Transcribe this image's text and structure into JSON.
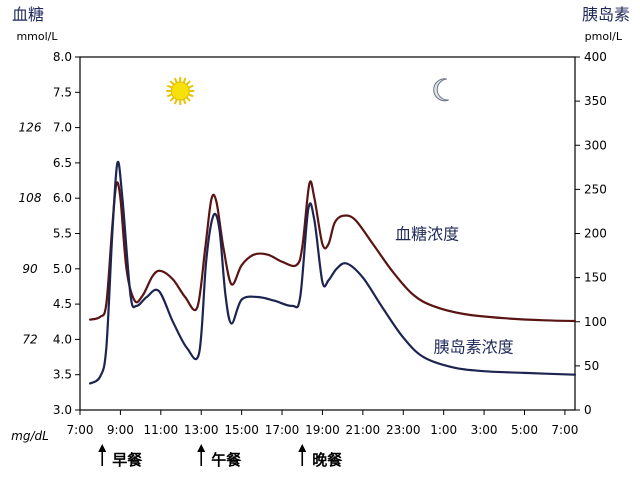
{
  "chart_data": {
    "type": "line",
    "title_left": "血糖",
    "title_right": "胰岛素",
    "left_unit": "mmol/L",
    "right_unit": "pmol/L",
    "mg_unit": "mg/dL",
    "x_start_hour": 7,
    "xlim_hours": [
      7,
      31.5
    ],
    "x_ticks": [
      "7:00",
      "9:00",
      "11:00",
      "13:00",
      "15:00",
      "17:00",
      "19:00",
      "21:00",
      "23:00",
      "1:00",
      "3:00",
      "5:00",
      "7:00"
    ],
    "x_tick_hours": [
      7,
      9,
      11,
      13,
      15,
      17,
      19,
      21,
      23,
      25,
      27,
      29,
      31
    ],
    "ylim_left": [
      3.0,
      8.0
    ],
    "y_ticks_left": [
      "3.0",
      "3.5",
      "4.0",
      "4.5",
      "5.0",
      "5.5",
      "6.0",
      "6.5",
      "7.0",
      "7.5",
      "8.0"
    ],
    "y_tick_values_left": [
      3.0,
      3.5,
      4.0,
      4.5,
      5.0,
      5.5,
      6.0,
      6.5,
      7.0,
      7.5,
      8.0
    ],
    "ylim_right": [
      0,
      400
    ],
    "y_ticks_right": [
      "0",
      "50",
      "100",
      "150",
      "200",
      "250",
      "300",
      "350",
      "400"
    ],
    "y_tick_values_right": [
      0,
      50,
      100,
      150,
      200,
      250,
      300,
      350,
      400
    ],
    "mg_ticks": [
      {
        "label": "72",
        "mmol": 4.0
      },
      {
        "label": "90",
        "mmol": 5.0
      },
      {
        "label": "108",
        "mmol": 6.0
      },
      {
        "label": "126",
        "mmol": 7.0
      }
    ],
    "series": [
      {
        "name": "血糖浓度",
        "axis": "left",
        "color": "#5a1414",
        "points": [
          [
            7.5,
            4.28
          ],
          [
            8.0,
            4.32
          ],
          [
            8.3,
            4.5
          ],
          [
            8.6,
            5.6
          ],
          [
            8.8,
            6.2
          ],
          [
            9.0,
            6.0
          ],
          [
            9.3,
            5.0
          ],
          [
            9.7,
            4.55
          ],
          [
            10.1,
            4.62
          ],
          [
            10.6,
            4.9
          ],
          [
            11.0,
            4.97
          ],
          [
            11.6,
            4.85
          ],
          [
            12.2,
            4.6
          ],
          [
            12.8,
            4.45
          ],
          [
            13.2,
            5.3
          ],
          [
            13.5,
            5.98
          ],
          [
            13.75,
            5.95
          ],
          [
            14.1,
            5.3
          ],
          [
            14.5,
            4.78
          ],
          [
            15.0,
            5.05
          ],
          [
            15.6,
            5.2
          ],
          [
            16.3,
            5.2
          ],
          [
            17.0,
            5.1
          ],
          [
            17.7,
            5.05
          ],
          [
            18.0,
            5.3
          ],
          [
            18.35,
            6.2
          ],
          [
            18.6,
            6.0
          ],
          [
            19.0,
            5.35
          ],
          [
            19.3,
            5.35
          ],
          [
            19.6,
            5.65
          ],
          [
            20.0,
            5.75
          ],
          [
            20.6,
            5.7
          ],
          [
            21.5,
            5.35
          ],
          [
            22.5,
            4.95
          ],
          [
            23.5,
            4.63
          ],
          [
            24.5,
            4.47
          ],
          [
            26.0,
            4.36
          ],
          [
            28.0,
            4.3
          ],
          [
            30.0,
            4.27
          ],
          [
            31.5,
            4.26
          ]
        ]
      },
      {
        "name": "胰岛素浓度",
        "axis": "right",
        "color": "#1e2450",
        "points": [
          [
            7.5,
            30
          ],
          [
            8.0,
            38
          ],
          [
            8.3,
            70
          ],
          [
            8.6,
            200
          ],
          [
            8.85,
            280
          ],
          [
            9.1,
            240
          ],
          [
            9.5,
            130
          ],
          [
            9.8,
            118
          ],
          [
            10.3,
            128
          ],
          [
            10.9,
            135
          ],
          [
            11.6,
            100
          ],
          [
            12.3,
            70
          ],
          [
            12.9,
            65
          ],
          [
            13.25,
            170
          ],
          [
            13.6,
            220
          ],
          [
            13.9,
            205
          ],
          [
            14.2,
            130
          ],
          [
            14.5,
            98
          ],
          [
            15.0,
            125
          ],
          [
            15.8,
            128
          ],
          [
            16.6,
            124
          ],
          [
            17.5,
            118
          ],
          [
            17.9,
            128
          ],
          [
            18.3,
            228
          ],
          [
            18.6,
            215
          ],
          [
            19.0,
            145
          ],
          [
            19.3,
            147
          ],
          [
            19.7,
            160
          ],
          [
            20.2,
            166
          ],
          [
            21.0,
            150
          ],
          [
            22.0,
            115
          ],
          [
            23.0,
            82
          ],
          [
            24.0,
            60
          ],
          [
            25.5,
            48
          ],
          [
            27.0,
            44
          ],
          [
            29.0,
            42
          ],
          [
            31.5,
            40
          ]
        ]
      }
    ],
    "meals": [
      {
        "label": "早餐",
        "hour": 8.1
      },
      {
        "label": "午餐",
        "hour": 13.0
      },
      {
        "label": "晚餐",
        "hour": 18.0
      }
    ],
    "sun_hour": 13.0,
    "moon_hour": 25.5,
    "grid": false
  }
}
